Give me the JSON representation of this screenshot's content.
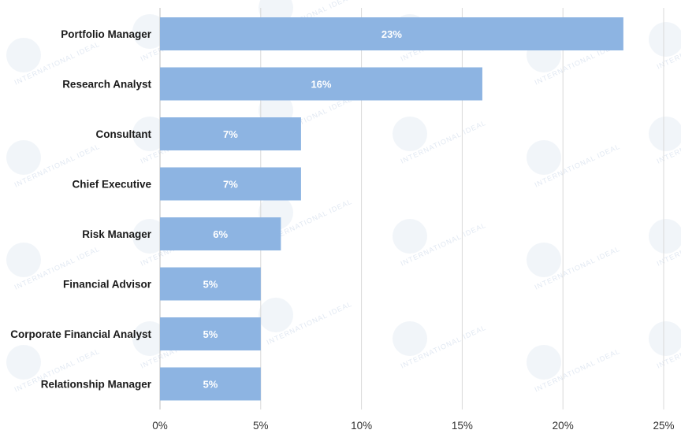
{
  "watermark": {
    "text": "INTERNATIONAL IDEAL"
  },
  "chart_data": {
    "type": "bar",
    "orientation": "horizontal",
    "categories": [
      "Portfolio Manager",
      "Research Analyst",
      "Consultant",
      "Chief Executive",
      "Risk Manager",
      "Financial Advisor",
      "Corporate Financial Analyst",
      "Relationship Manager"
    ],
    "values": [
      23,
      16,
      7,
      7,
      6,
      5,
      5,
      5
    ],
    "data_labels": [
      "23%",
      "16%",
      "7%",
      "7%",
      "6%",
      "5%",
      "5%",
      "5%"
    ],
    "x_ticks": [
      0,
      5,
      10,
      15,
      20,
      25
    ],
    "x_tick_labels": [
      "0%",
      "5%",
      "10%",
      "15%",
      "20%",
      "25%"
    ],
    "xlim": [
      0,
      25
    ],
    "unit": "%",
    "grid": "vertical",
    "bar_color": "#8db4e2",
    "data_label_color": "#ffffff",
    "legend": "none"
  }
}
